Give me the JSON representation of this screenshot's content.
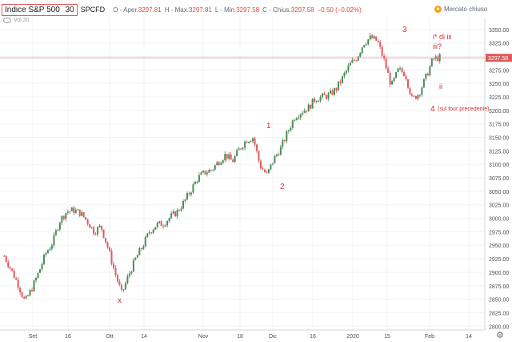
{
  "header": {
    "symbol_title": "Indice S&P 500",
    "timeframe": "30",
    "exchange": "SPCFD",
    "open_label": "O - Aper.",
    "open_value": "3297.81",
    "high_label": "H - Max.",
    "high_value": "3297.81",
    "low_label": "L - Min.",
    "low_value": "3297.58",
    "close_label": "C - Chius.",
    "close_value": "3297.58",
    "change": "−0.50 (−0.02%)"
  },
  "indicator": {
    "label": "Vol 20"
  },
  "market_status": {
    "icon": "clock-icon",
    "label": "Mercato chiuso"
  },
  "chart_data": {
    "type": "candlestick",
    "title": "Indice S&P 500",
    "y_axis": {
      "ticks": [
        "3350.00",
        "3325.00",
        "3300.00",
        "3275.00",
        "3250.00",
        "3225.00",
        "3200.00",
        "3175.00",
        "3150.00",
        "3125.00",
        "3100.00",
        "3075.00",
        "3050.00",
        "3025.00",
        "3000.00",
        "2975.00",
        "2950.00",
        "2925.00",
        "2900.00",
        "2875.00",
        "2850.00",
        "2825.00",
        "2800.00"
      ],
      "range": [
        2793,
        3372
      ]
    },
    "x_axis": {
      "ticks": [
        "Set",
        "16",
        "Ott",
        "14",
        "Nov",
        "18",
        "Dic",
        "16",
        "2020",
        "15",
        "Feb",
        "14"
      ]
    },
    "current_price": "3297.58",
    "up_color": "#4c8a55",
    "down_color": "#e05a5a",
    "label_color": "#d22e2e",
    "price_points": [
      [
        "Ago 26",
        2930
      ],
      [
        "Ago 27",
        2905
      ],
      [
        "Ago 28",
        2878
      ],
      [
        "Ago 29",
        2845
      ],
      [
        "Ago 30",
        2870
      ],
      [
        "Set 3",
        2900
      ],
      [
        "Set 5",
        2935
      ],
      [
        "Set 9",
        2955
      ],
      [
        "Set 11",
        2995
      ],
      [
        "Set 13",
        3012
      ],
      [
        "Set 16",
        3015
      ],
      [
        "Set 18",
        3010
      ],
      [
        "Set 20",
        2995
      ],
      [
        "Set 24",
        2975
      ],
      [
        "Set 26",
        2985
      ],
      [
        "Set 30",
        2945
      ],
      [
        "Ott 2",
        2900
      ],
      [
        "Ott 3",
        2860
      ],
      [
        "Ott 4",
        2895
      ],
      [
        "Ott 7",
        2925
      ],
      [
        "Ott 9",
        2948
      ],
      [
        "Ott 11",
        2975
      ],
      [
        "Ott 15",
        2988
      ],
      [
        "Ott 18",
        2990
      ],
      [
        "Ott 22",
        3002
      ],
      [
        "Ott 25",
        3012
      ],
      [
        "Ott 28",
        3030
      ],
      [
        "Nov 1",
        3052
      ],
      [
        "Nov 5",
        3075
      ],
      [
        "Nov 8",
        3085
      ],
      [
        "Nov 12",
        3090
      ],
      [
        "Nov 15",
        3105
      ],
      [
        "Nov 19",
        3118
      ],
      [
        "Nov 21",
        3105
      ],
      [
        "Nov 25",
        3128
      ],
      [
        "Nov 27",
        3145
      ],
      [
        "Nov 29",
        3150
      ],
      [
        "Dic 2",
        3098
      ],
      [
        "Dic 3",
        3080
      ],
      [
        "Dic 5",
        3110
      ],
      [
        "Dic 9",
        3130
      ],
      [
        "Dic 12",
        3160
      ],
      [
        "Dic 16",
        3188
      ],
      [
        "Dic 19",
        3198
      ],
      [
        "Dic 23",
        3205
      ],
      [
        "Dic 27",
        3222
      ],
      [
        "Dic 31",
        3225
      ],
      [
        "Gen 3",
        3228
      ],
      [
        "Gen 7",
        3240
      ],
      [
        "Gen 9",
        3262
      ],
      [
        "Gen 13",
        3285
      ],
      [
        "Gen 15",
        3298
      ],
      [
        "Gen 17",
        3325
      ],
      [
        "Gen 20",
        3335
      ],
      [
        "Gen 22",
        3328
      ],
      [
        "Gen 24",
        3290
      ],
      [
        "Gen 27",
        3245
      ],
      [
        "Gen 28",
        3275
      ],
      [
        "Gen 29",
        3268
      ],
      [
        "Gen 30",
        3220
      ],
      [
        "Gen 31",
        3232
      ],
      [
        "Feb 3",
        3262
      ],
      [
        "Feb 4",
        3295
      ],
      [
        "Feb 5",
        3298
      ]
    ],
    "annotations": [
      {
        "text": "x"
      },
      {
        "text": "1"
      },
      {
        "text": "2"
      },
      {
        "text": "3"
      },
      {
        "text": "i* di iii"
      },
      {
        "text": "iii?"
      },
      {
        "text": "ii"
      },
      {
        "text": "4"
      },
      {
        "text": "(sul four precedente)"
      }
    ]
  },
  "settings": {
    "icon": "gear-icon"
  }
}
